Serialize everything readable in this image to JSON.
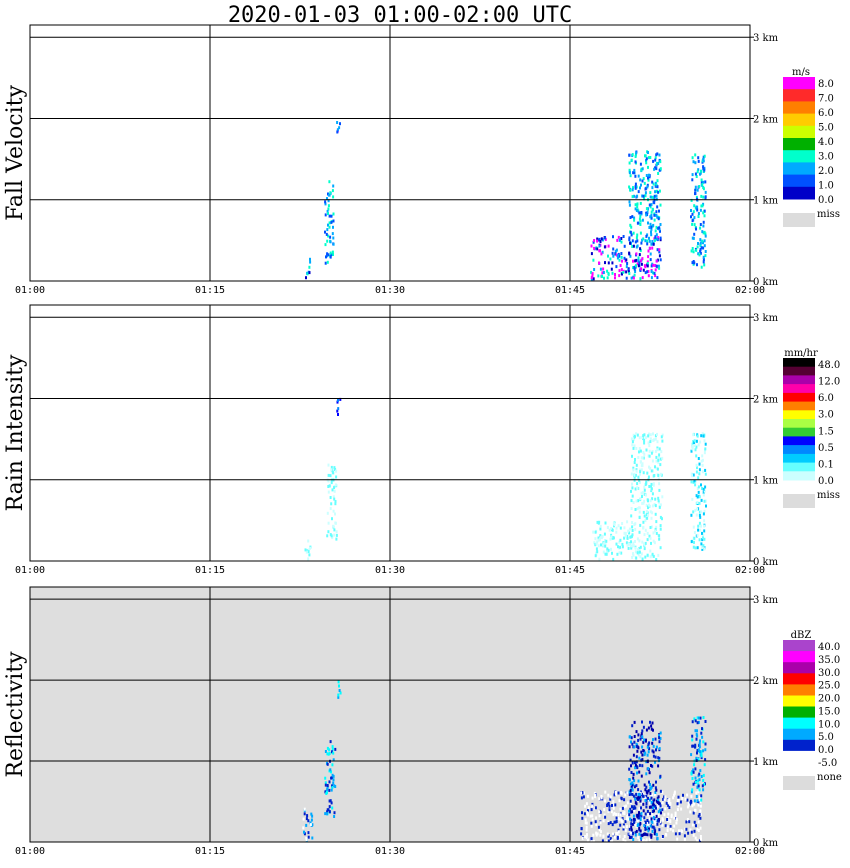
{
  "title": "2020-01-03   01:00-02:00 UTC",
  "chart_data": [
    {
      "type": "heatmap",
      "panel": "fall_velocity",
      "ylabel": "Fall Velocity",
      "x_ticks": [
        "01:00",
        "01:15",
        "01:30",
        "01:45",
        "02:00"
      ],
      "y_ticks": [
        "0 km",
        "1 km",
        "2 km",
        "3 km"
      ],
      "ylim": [
        0,
        3
      ],
      "legend": {
        "unit": "m/s",
        "labels": [
          "8.0",
          "7.0",
          "6.0",
          "5.0",
          "4.0",
          "3.0",
          "2.0",
          "1.0",
          "0.0"
        ],
        "colors": [
          "#ff00ff",
          "#ff2a2a",
          "#ff7f00",
          "#ffcc00",
          "#ccff00",
          "#00b000",
          "#00ffcc",
          "#00aaff",
          "#0050ff",
          "#0000c8"
        ],
        "miss_label": "miss",
        "miss_color": "#dcdcdc"
      },
      "background": "#ffffff"
    },
    {
      "type": "heatmap",
      "panel": "rain_intensity",
      "ylabel": "Rain Intensity",
      "x_ticks": [
        "01:00",
        "01:15",
        "01:30",
        "01:45",
        "02:00"
      ],
      "y_ticks": [
        "0 km",
        "1 km",
        "2 km",
        "3 km"
      ],
      "ylim": [
        0,
        3
      ],
      "legend": {
        "unit": "mm/hr",
        "labels": [
          "48.0",
          "12.0",
          "6.0",
          "3.0",
          "1.5",
          "0.5",
          "0.1",
          "0.0"
        ],
        "colors": [
          "#000000",
          "#550033",
          "#aa00aa",
          "#ff00aa",
          "#ff0000",
          "#ff7f00",
          "#ffff00",
          "#aaff44",
          "#33cc33",
          "#0000ff",
          "#0088ff",
          "#00ccff",
          "#66ffff",
          "#ccffff"
        ],
        "miss_label": "miss",
        "miss_color": "#dcdcdc"
      },
      "background": "#ffffff"
    },
    {
      "type": "heatmap",
      "panel": "reflectivity",
      "ylabel": "Reflectivity",
      "x_ticks": [
        "01:00",
        "01:15",
        "01:30",
        "01:45",
        "02:00"
      ],
      "y_ticks": [
        "0 km",
        "1 km",
        "2 km",
        "3 km"
      ],
      "ylim": [
        0,
        3
      ],
      "legend": {
        "unit": "dBZ",
        "labels": [
          "40.0",
          "35.0",
          "30.0",
          "25.0",
          "20.0",
          "15.0",
          "10.0",
          "5.0",
          "0.0",
          "-5.0"
        ],
        "colors": [
          "#aa44cc",
          "#ff00ff",
          "#aa00aa",
          "#ff0000",
          "#ff7f00",
          "#ffff00",
          "#00b000",
          "#00ffff",
          "#00aaff",
          "#0022cc",
          "#ffffff"
        ],
        "miss_label": "none",
        "miss_color": "#dcdcdc"
      },
      "background": "#dedede"
    }
  ]
}
